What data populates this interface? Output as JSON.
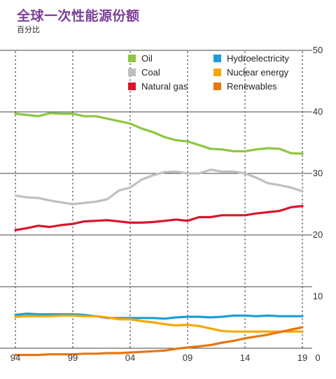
{
  "header": {
    "title": "全球一次性能源份额",
    "subtitle": "百分比"
  },
  "colors": {
    "Oil": "#8dc63f",
    "Coal": "#bfbfbf",
    "Natural gas": "#d7182a",
    "Hydroelectricity": "#1a9dd9",
    "Nuclear energy": "#f5a800",
    "Renewables": "#e87511"
  },
  "chart_data": {
    "type": "line",
    "title": "全球一次性能源份额",
    "subtitle": "百分比",
    "xlabel": "",
    "ylabel": "",
    "x": [
      1994,
      1995,
      1996,
      1997,
      1998,
      1999,
      2000,
      2001,
      2002,
      2003,
      2004,
      2005,
      2006,
      2007,
      2008,
      2009,
      2010,
      2011,
      2012,
      2013,
      2014,
      2015,
      2016,
      2017,
      2018,
      2019
    ],
    "x_tick_labels": [
      "94",
      "99",
      "04",
      "09",
      "14",
      "19"
    ],
    "x_tick_values": [
      1994,
      1999,
      2004,
      2009,
      2014,
      2019
    ],
    "xlim": [
      1994,
      2019
    ],
    "y_tick_labels": [
      "50",
      "40",
      "30",
      "20",
      "10",
      "0"
    ],
    "y_tick_values": [
      50,
      40,
      30,
      20,
      10,
      0
    ],
    "ylim": [
      0,
      50
    ],
    "y_axis_break": [
      12,
      50
    ],
    "grid": true,
    "legend_position": "top",
    "series": [
      {
        "name": "Oil",
        "values": [
          39.7,
          39.5,
          39.3,
          39.8,
          39.7,
          39.7,
          39.3,
          39.3,
          38.9,
          38.5,
          38.1,
          37.3,
          36.7,
          35.9,
          35.4,
          35.2,
          34.6,
          34.0,
          33.9,
          33.6,
          33.6,
          33.9,
          34.1,
          34.0,
          33.3,
          33.2
        ]
      },
      {
        "name": "Coal",
        "values": [
          26.4,
          26.1,
          26.0,
          25.6,
          25.3,
          25.0,
          25.2,
          25.4,
          25.8,
          27.2,
          27.7,
          29.0,
          29.7,
          30.2,
          30.3,
          30.0,
          30.0,
          30.6,
          30.3,
          30.3,
          30.0,
          29.3,
          28.4,
          28.1,
          27.7,
          27.1
        ]
      },
      {
        "name": "Natural gas",
        "values": [
          20.8,
          21.1,
          21.5,
          21.3,
          21.6,
          21.8,
          22.2,
          22.3,
          22.4,
          22.2,
          22.0,
          22.0,
          22.1,
          22.3,
          22.5,
          22.3,
          22.9,
          22.9,
          23.2,
          23.2,
          23.2,
          23.5,
          23.7,
          23.9,
          24.5,
          24.7
        ]
      },
      {
        "name": "Hydroelectricity",
        "values": [
          7.0,
          7.2,
          7.1,
          7.1,
          7.1,
          7.1,
          7.0,
          6.8,
          6.5,
          6.5,
          6.5,
          6.5,
          6.5,
          6.4,
          6.6,
          6.7,
          6.7,
          6.6,
          6.7,
          6.9,
          6.9,
          6.8,
          6.9,
          6.8,
          6.8,
          6.8
        ]
      },
      {
        "name": "Nuclear energy",
        "values": [
          6.7,
          6.8,
          6.8,
          6.8,
          6.9,
          6.9,
          6.8,
          6.8,
          6.6,
          6.3,
          6.3,
          6.0,
          5.8,
          5.5,
          5.3,
          5.4,
          5.2,
          4.8,
          4.4,
          4.3,
          4.3,
          4.3,
          4.3,
          4.3,
          4.3,
          4.3
        ]
      },
      {
        "name": "Renewables",
        "values": [
          0.5,
          0.5,
          0.5,
          0.6,
          0.6,
          0.6,
          0.7,
          0.7,
          0.8,
          0.8,
          0.9,
          1.0,
          1.1,
          1.2,
          1.5,
          1.7,
          1.9,
          2.1,
          2.5,
          2.8,
          3.2,
          3.5,
          3.8,
          4.2,
          4.6,
          5.0
        ]
      }
    ]
  }
}
